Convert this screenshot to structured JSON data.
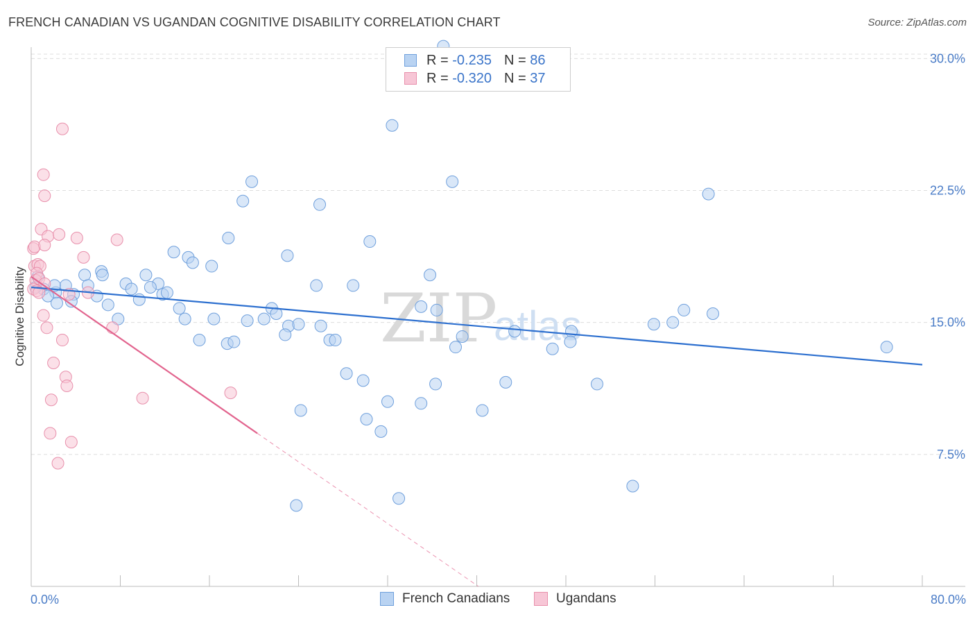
{
  "title": "FRENCH CANADIAN VS UGANDAN COGNITIVE DISABILITY CORRELATION CHART",
  "source": "Source: ZipAtlas.com",
  "watermark": {
    "zip": "ZIP",
    "atlas": "atlas"
  },
  "legend": {
    "rows": [
      {
        "r_label": "R =",
        "r_value": "-0.235",
        "n_label": "N =",
        "n_value": "86"
      },
      {
        "r_label": "R =",
        "r_value": "-0.320",
        "n_label": "N =",
        "n_value": "37"
      }
    ]
  },
  "colors": {
    "blue_fill": "#b9d3f2",
    "blue_stroke": "#6e9fdc",
    "blue_line": "#2c6fcf",
    "pink_fill": "#f7c6d6",
    "pink_stroke": "#e88fab",
    "pink_line": "#e2648e",
    "grid": "#dddddd",
    "axis_text": "#4a7cc7"
  },
  "chart_data": {
    "type": "scatter",
    "title": "FRENCH CANADIAN VS UGANDAN COGNITIVE DISABILITY CORRELATION CHART",
    "xlabel": "",
    "ylabel": "Cognitive Disability",
    "xlim": [
      0,
      80
    ],
    "ylim": [
      0,
      31
    ],
    "x_tick_labels": [
      "0.0%",
      "80.0%"
    ],
    "y_ticks": [
      7.5,
      15.0,
      22.5,
      30.0
    ],
    "y_tick_labels": [
      "7.5%",
      "15.0%",
      "22.5%",
      "30.0%"
    ],
    "grid": "horizontal dashed",
    "legend_placement": "bottom",
    "series": [
      {
        "name": "French Canadians",
        "r": -0.235,
        "n": 86,
        "trend": {
          "x": [
            0,
            80
          ],
          "y": [
            17.0,
            12.6
          ]
        },
        "points": [
          [
            37.0,
            30.7
          ],
          [
            40.5,
            29.5
          ],
          [
            32.4,
            26.2
          ],
          [
            37.8,
            23.0
          ],
          [
            19.8,
            23.0
          ],
          [
            60.8,
            22.3
          ],
          [
            19.0,
            21.9
          ],
          [
            25.9,
            21.7
          ],
          [
            17.7,
            19.8
          ],
          [
            30.4,
            19.6
          ],
          [
            12.8,
            19.0
          ],
          [
            14.1,
            18.7
          ],
          [
            23.0,
            18.8
          ],
          [
            14.5,
            18.4
          ],
          [
            16.2,
            18.2
          ],
          [
            35.8,
            17.7
          ],
          [
            6.3,
            17.9
          ],
          [
            4.8,
            17.7
          ],
          [
            6.4,
            17.7
          ],
          [
            10.3,
            17.7
          ],
          [
            8.5,
            17.2
          ],
          [
            5.1,
            17.1
          ],
          [
            9.0,
            16.9
          ],
          [
            11.4,
            17.2
          ],
          [
            10.7,
            17.0
          ],
          [
            25.6,
            17.1
          ],
          [
            28.9,
            17.1
          ],
          [
            1.1,
            16.9
          ],
          [
            3.1,
            17.1
          ],
          [
            2.2,
            16.7
          ],
          [
            1.5,
            16.5
          ],
          [
            3.8,
            16.6
          ],
          [
            11.8,
            16.6
          ],
          [
            12.2,
            16.7
          ],
          [
            5.9,
            16.5
          ],
          [
            3.6,
            16.2
          ],
          [
            2.3,
            16.1
          ],
          [
            9.7,
            16.3
          ],
          [
            6.9,
            16.0
          ],
          [
            13.3,
            15.8
          ],
          [
            21.6,
            15.8
          ],
          [
            35.0,
            15.9
          ],
          [
            36.4,
            15.7
          ],
          [
            58.6,
            15.7
          ],
          [
            61.2,
            15.5
          ],
          [
            13.8,
            15.2
          ],
          [
            16.4,
            15.2
          ],
          [
            19.4,
            15.1
          ],
          [
            20.9,
            15.2
          ],
          [
            22.0,
            15.5
          ],
          [
            7.8,
            15.2
          ],
          [
            23.1,
            14.8
          ],
          [
            24.0,
            14.9
          ],
          [
            26.0,
            14.8
          ],
          [
            55.9,
            14.9
          ],
          [
            57.6,
            15.0
          ],
          [
            43.4,
            14.5
          ],
          [
            48.5,
            14.5
          ],
          [
            48.4,
            13.9
          ],
          [
            22.8,
            14.3
          ],
          [
            38.7,
            14.2
          ],
          [
            15.1,
            14.0
          ],
          [
            17.6,
            13.8
          ],
          [
            18.2,
            13.9
          ],
          [
            26.8,
            14.0
          ],
          [
            27.3,
            14.0
          ],
          [
            38.1,
            13.6
          ],
          [
            46.8,
            13.5
          ],
          [
            76.8,
            13.6
          ],
          [
            28.3,
            12.1
          ],
          [
            29.8,
            11.7
          ],
          [
            36.3,
            11.5
          ],
          [
            42.6,
            11.6
          ],
          [
            50.8,
            11.5
          ],
          [
            32.0,
            10.5
          ],
          [
            35.0,
            10.4
          ],
          [
            24.2,
            10.0
          ],
          [
            40.5,
            10.0
          ],
          [
            30.1,
            9.5
          ],
          [
            31.4,
            8.8
          ],
          [
            54.0,
            5.7
          ],
          [
            33.0,
            5.0
          ],
          [
            23.8,
            4.6
          ],
          [
            0.4,
            17.0
          ],
          [
            0.6,
            17.6
          ],
          [
            2.1,
            17.1
          ]
        ]
      },
      {
        "name": "Ugandans",
        "r": -0.32,
        "n": 37,
        "trend": {
          "x": [
            0,
            20.3
          ],
          "y": [
            17.6,
            8.7
          ]
        },
        "points": [
          [
            1.1,
            23.4
          ],
          [
            2.8,
            26.0
          ],
          [
            1.2,
            22.2
          ],
          [
            0.9,
            20.3
          ],
          [
            1.5,
            19.9
          ],
          [
            2.5,
            20.0
          ],
          [
            4.1,
            19.8
          ],
          [
            7.7,
            19.7
          ],
          [
            0.2,
            19.2
          ],
          [
            0.3,
            19.3
          ],
          [
            1.2,
            19.4
          ],
          [
            4.7,
            18.7
          ],
          [
            0.3,
            18.2
          ],
          [
            0.6,
            18.3
          ],
          [
            0.8,
            18.2
          ],
          [
            0.5,
            17.8
          ],
          [
            0.4,
            17.4
          ],
          [
            0.7,
            17.5
          ],
          [
            1.2,
            17.2
          ],
          [
            0.2,
            16.9
          ],
          [
            0.5,
            16.8
          ],
          [
            0.7,
            16.7
          ],
          [
            3.4,
            16.6
          ],
          [
            5.1,
            16.7
          ],
          [
            1.1,
            15.4
          ],
          [
            7.3,
            14.7
          ],
          [
            1.4,
            14.7
          ],
          [
            2.8,
            14.0
          ],
          [
            2.0,
            12.7
          ],
          [
            3.1,
            11.9
          ],
          [
            3.2,
            11.4
          ],
          [
            17.9,
            11.0
          ],
          [
            10.0,
            10.7
          ],
          [
            1.8,
            10.6
          ],
          [
            1.7,
            8.7
          ],
          [
            3.6,
            8.2
          ],
          [
            2.4,
            7.0
          ]
        ]
      }
    ]
  },
  "bottom_legend": {
    "item1": "French Canadians",
    "item2": "Ugandans"
  }
}
